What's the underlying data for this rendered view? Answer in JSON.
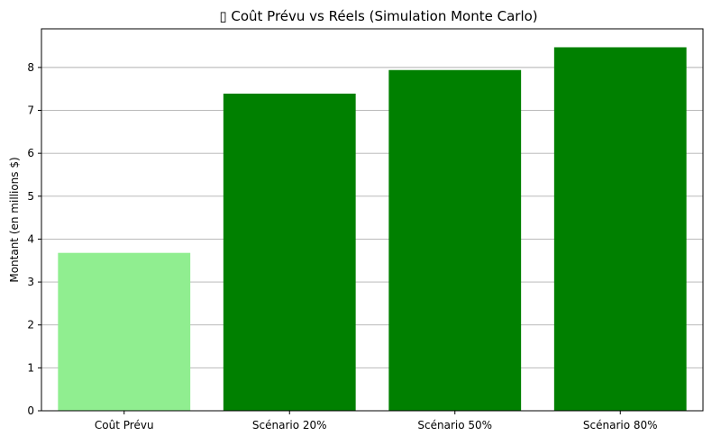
{
  "chart_data": {
    "type": "bar",
    "title": "▯ Coût Prévu vs Réels (Simulation Monte Carlo)",
    "xlabel": "",
    "ylabel": "Montant (en millions $)",
    "categories": [
      "Coût Prévu",
      "Scénario 20%",
      "Scénario 50%",
      "Scénario 80%"
    ],
    "values": [
      3.68,
      7.39,
      7.94,
      8.47
    ],
    "colors": [
      "#90ee90",
      "#008000",
      "#008000",
      "#008000"
    ],
    "ylim": [
      0,
      8.9
    ],
    "yticks": [
      "0",
      "1",
      "2",
      "3",
      "4",
      "5",
      "6",
      "7",
      "8"
    ],
    "grid": "y-axis"
  }
}
